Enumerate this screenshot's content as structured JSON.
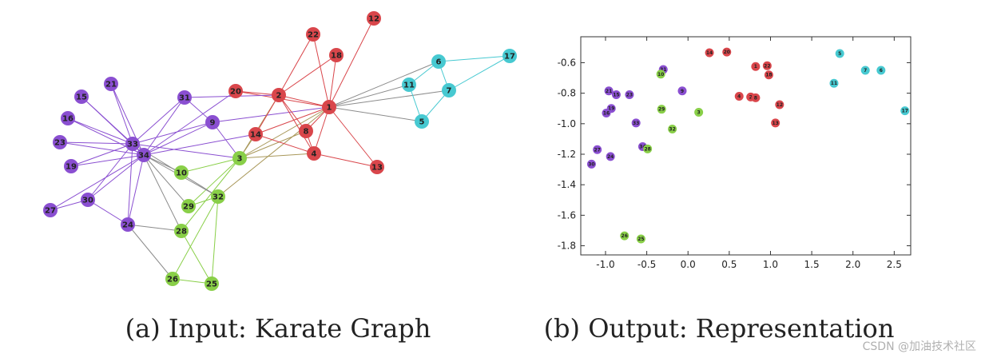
{
  "colors": {
    "red": "#d9464b",
    "cyan": "#47c9d1",
    "purple": "#8a4fd1",
    "green": "#89cf48",
    "gray": "#8c8c8c"
  },
  "graph": {
    "caption": "(a) Input: Karate Graph",
    "nodes": [
      {
        "id": "1",
        "group": "red"
      },
      {
        "id": "2",
        "group": "red"
      },
      {
        "id": "3",
        "group": "green"
      },
      {
        "id": "4",
        "group": "red"
      },
      {
        "id": "5",
        "group": "cyan"
      },
      {
        "id": "6",
        "group": "cyan"
      },
      {
        "id": "7",
        "group": "cyan"
      },
      {
        "id": "8",
        "group": "red"
      },
      {
        "id": "9",
        "group": "purple"
      },
      {
        "id": "10",
        "group": "green"
      },
      {
        "id": "11",
        "group": "cyan"
      },
      {
        "id": "12",
        "group": "red"
      },
      {
        "id": "13",
        "group": "red"
      },
      {
        "id": "14",
        "group": "red"
      },
      {
        "id": "15",
        "group": "purple"
      },
      {
        "id": "16",
        "group": "purple"
      },
      {
        "id": "17",
        "group": "cyan"
      },
      {
        "id": "18",
        "group": "red"
      },
      {
        "id": "19",
        "group": "purple"
      },
      {
        "id": "20",
        "group": "red"
      },
      {
        "id": "21",
        "group": "purple"
      },
      {
        "id": "22",
        "group": "red"
      },
      {
        "id": "23",
        "group": "purple"
      },
      {
        "id": "24",
        "group": "purple"
      },
      {
        "id": "25",
        "group": "green"
      },
      {
        "id": "26",
        "group": "green"
      },
      {
        "id": "27",
        "group": "purple"
      },
      {
        "id": "28",
        "group": "green"
      },
      {
        "id": "29",
        "group": "green"
      },
      {
        "id": "30",
        "group": "purple"
      },
      {
        "id": "31",
        "group": "purple"
      },
      {
        "id": "32",
        "group": "green"
      },
      {
        "id": "33",
        "group": "purple"
      },
      {
        "id": "34",
        "group": "purple"
      }
    ],
    "edges": [
      [
        "1",
        "2",
        "red"
      ],
      [
        "1",
        "3",
        "mix"
      ],
      [
        "1",
        "4",
        "red"
      ],
      [
        "1",
        "5",
        "gray"
      ],
      [
        "1",
        "6",
        "gray"
      ],
      [
        "1",
        "7",
        "gray"
      ],
      [
        "1",
        "8",
        "red"
      ],
      [
        "1",
        "9",
        "purple"
      ],
      [
        "1",
        "11",
        "gray"
      ],
      [
        "1",
        "12",
        "red"
      ],
      [
        "1",
        "13",
        "red"
      ],
      [
        "1",
        "14",
        "red"
      ],
      [
        "1",
        "18",
        "red"
      ],
      [
        "1",
        "20",
        "red"
      ],
      [
        "1",
        "22",
        "red"
      ],
      [
        "1",
        "32",
        "mix"
      ],
      [
        "2",
        "3",
        "mix"
      ],
      [
        "2",
        "4",
        "red"
      ],
      [
        "2",
        "8",
        "red"
      ],
      [
        "2",
        "14",
        "red"
      ],
      [
        "2",
        "18",
        "red"
      ],
      [
        "2",
        "20",
        "red"
      ],
      [
        "2",
        "22",
        "red"
      ],
      [
        "2",
        "31",
        "purple"
      ],
      [
        "3",
        "4",
        "mix"
      ],
      [
        "3",
        "8",
        "mix"
      ],
      [
        "3",
        "9",
        "purple"
      ],
      [
        "3",
        "10",
        "green"
      ],
      [
        "3",
        "14",
        "mix"
      ],
      [
        "3",
        "28",
        "green"
      ],
      [
        "3",
        "29",
        "green"
      ],
      [
        "3",
        "33",
        "purple"
      ],
      [
        "4",
        "8",
        "red"
      ],
      [
        "4",
        "13",
        "red"
      ],
      [
        "4",
        "14",
        "red"
      ],
      [
        "5",
        "7",
        "cyan"
      ],
      [
        "5",
        "11",
        "cyan"
      ],
      [
        "6",
        "7",
        "cyan"
      ],
      [
        "6",
        "11",
        "cyan"
      ],
      [
        "6",
        "17",
        "cyan"
      ],
      [
        "7",
        "17",
        "cyan"
      ],
      [
        "9",
        "31",
        "purple"
      ],
      [
        "9",
        "33",
        "purple"
      ],
      [
        "9",
        "34",
        "purple"
      ],
      [
        "10",
        "34",
        "gray"
      ],
      [
        "14",
        "34",
        "purple"
      ],
      [
        "15",
        "33",
        "purple"
      ],
      [
        "15",
        "34",
        "purple"
      ],
      [
        "16",
        "33",
        "purple"
      ],
      [
        "16",
        "34",
        "purple"
      ],
      [
        "19",
        "33",
        "purple"
      ],
      [
        "19",
        "34",
        "purple"
      ],
      [
        "20",
        "34",
        "purple"
      ],
      [
        "21",
        "33",
        "purple"
      ],
      [
        "21",
        "34",
        "purple"
      ],
      [
        "23",
        "33",
        "purple"
      ],
      [
        "23",
        "34",
        "purple"
      ],
      [
        "24",
        "26",
        "gray"
      ],
      [
        "24",
        "28",
        "gray"
      ],
      [
        "24",
        "30",
        "purple"
      ],
      [
        "24",
        "33",
        "purple"
      ],
      [
        "24",
        "34",
        "purple"
      ],
      [
        "25",
        "26",
        "green"
      ],
      [
        "25",
        "28",
        "green"
      ],
      [
        "25",
        "32",
        "green"
      ],
      [
        "26",
        "32",
        "green"
      ],
      [
        "27",
        "30",
        "purple"
      ],
      [
        "27",
        "34",
        "purple"
      ],
      [
        "28",
        "34",
        "gray"
      ],
      [
        "29",
        "32",
        "green"
      ],
      [
        "29",
        "34",
        "gray"
      ],
      [
        "30",
        "33",
        "purple"
      ],
      [
        "30",
        "34",
        "purple"
      ],
      [
        "31",
        "33",
        "purple"
      ],
      [
        "31",
        "34",
        "purple"
      ],
      [
        "32",
        "33",
        "gray"
      ],
      [
        "32",
        "34",
        "gray"
      ],
      [
        "33",
        "34",
        "purple"
      ]
    ]
  },
  "chart_data": {
    "type": "scatter",
    "title": "",
    "caption": "(b) Output: Representation",
    "xlabel": "",
    "ylabel": "",
    "xlim": [
      -1.3,
      2.7
    ],
    "ylim": [
      -1.86,
      -0.43
    ],
    "xticks": [
      -1.0,
      -0.5,
      0.0,
      0.5,
      1.0,
      1.5,
      2.0,
      2.5
    ],
    "xtick_labels": [
      "-1.0",
      "-0.5",
      "0.0",
      "0.5",
      "1.0",
      "1.5",
      "2.0",
      "2.5"
    ],
    "yticks": [
      -0.6,
      -0.8,
      -1.0,
      -1.2,
      -1.4,
      -1.6,
      -1.8
    ],
    "ytick_labels": [
      "-0.6",
      "-0.8",
      "-1.0",
      "-1.2",
      "-1.4",
      "-1.6",
      "-1.8"
    ],
    "points": [
      {
        "label": "14",
        "x": 0.26,
        "y": -0.535,
        "group": "red"
      },
      {
        "label": "20",
        "x": 0.47,
        "y": -0.53,
        "group": "red"
      },
      {
        "label": "1",
        "x": 0.82,
        "y": -0.625,
        "group": "red"
      },
      {
        "label": "22",
        "x": 0.96,
        "y": -0.62,
        "group": "red"
      },
      {
        "label": "18",
        "x": 0.98,
        "y": -0.68,
        "group": "red"
      },
      {
        "label": "4",
        "x": 0.62,
        "y": -0.82,
        "group": "red"
      },
      {
        "label": "2",
        "x": 0.76,
        "y": -0.825,
        "group": "red"
      },
      {
        "label": "8",
        "x": 0.82,
        "y": -0.83,
        "group": "red"
      },
      {
        "label": "12",
        "x": 1.11,
        "y": -0.875,
        "group": "red"
      },
      {
        "label": "13",
        "x": 1.06,
        "y": -0.995,
        "group": "red"
      },
      {
        "label": "5",
        "x": 1.84,
        "y": -0.54,
        "group": "cyan"
      },
      {
        "label": "7",
        "x": 2.15,
        "y": -0.65,
        "group": "cyan"
      },
      {
        "label": "6",
        "x": 2.34,
        "y": -0.65,
        "group": "cyan"
      },
      {
        "label": "11",
        "x": 1.77,
        "y": -0.735,
        "group": "cyan"
      },
      {
        "label": "17",
        "x": 2.63,
        "y": -0.915,
        "group": "cyan"
      },
      {
        "label": "31",
        "x": -0.3,
        "y": -0.645,
        "group": "purple"
      },
      {
        "label": "21",
        "x": -0.96,
        "y": -0.785,
        "group": "purple"
      },
      {
        "label": "15",
        "x": -0.87,
        "y": -0.81,
        "group": "purple"
      },
      {
        "label": "23",
        "x": -0.71,
        "y": -0.81,
        "group": "purple"
      },
      {
        "label": "9",
        "x": -0.07,
        "y": -0.785,
        "group": "purple"
      },
      {
        "label": "19",
        "x": -0.93,
        "y": -0.9,
        "group": "purple"
      },
      {
        "label": "16",
        "x": -0.99,
        "y": -0.93,
        "group": "purple"
      },
      {
        "label": "33",
        "x": -0.63,
        "y": -0.995,
        "group": "purple"
      },
      {
        "label": "34",
        "x": -0.55,
        "y": -1.15,
        "group": "purple"
      },
      {
        "label": "27",
        "x": -1.1,
        "y": -1.17,
        "group": "purple"
      },
      {
        "label": "24",
        "x": -0.94,
        "y": -1.215,
        "group": "purple"
      },
      {
        "label": "30",
        "x": -1.17,
        "y": -1.265,
        "group": "purple"
      },
      {
        "label": "10",
        "x": -0.33,
        "y": -0.675,
        "group": "green"
      },
      {
        "label": "29",
        "x": -0.32,
        "y": -0.905,
        "group": "green"
      },
      {
        "label": "3",
        "x": 0.13,
        "y": -0.925,
        "group": "green"
      },
      {
        "label": "32",
        "x": -0.19,
        "y": -1.035,
        "group": "green"
      },
      {
        "label": "28",
        "x": -0.49,
        "y": -1.165,
        "group": "green"
      },
      {
        "label": "26",
        "x": -0.77,
        "y": -1.735,
        "group": "green"
      },
      {
        "label": "25",
        "x": -0.57,
        "y": -1.755,
        "group": "green"
      }
    ]
  },
  "watermark": "CSDN @加油技术社区"
}
